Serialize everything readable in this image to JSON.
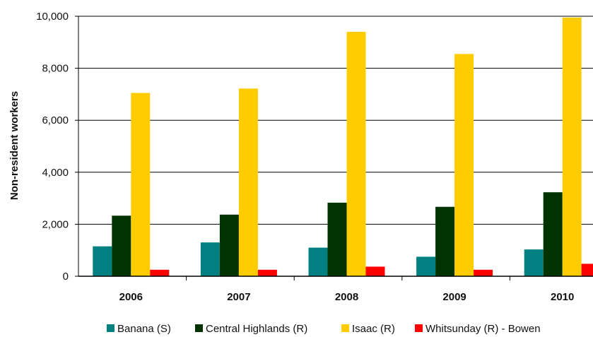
{
  "chart_data": {
    "type": "bar",
    "title": "",
    "xlabel": "",
    "ylabel": "Non-resident workers",
    "ylim": [
      0,
      10000
    ],
    "yticks": [
      0,
      2000,
      4000,
      6000,
      8000,
      10000
    ],
    "ytick_labels": [
      "0",
      "2,000",
      "4,000",
      "6,000",
      "8,000",
      "10,000"
    ],
    "categories": [
      "2006",
      "2007",
      "2008",
      "2009",
      "2010"
    ],
    "grid": "horizontal",
    "legend_position": "bottom",
    "series": [
      {
        "name": "Banana (S)",
        "color": "#008080",
        "values": [
          1150,
          1300,
          1100,
          750,
          1030
        ]
      },
      {
        "name": "Central Highlands (R)",
        "color": "#003300",
        "values": [
          2330,
          2370,
          2830,
          2670,
          3230
        ]
      },
      {
        "name": "Isaac (R)",
        "color": "#FFCC00",
        "values": [
          7050,
          7220,
          9400,
          8550,
          9950
        ]
      },
      {
        "name": "Whitsunday (R) - Bowen",
        "color": "#FF0000",
        "values": [
          250,
          250,
          370,
          250,
          480
        ]
      }
    ]
  }
}
